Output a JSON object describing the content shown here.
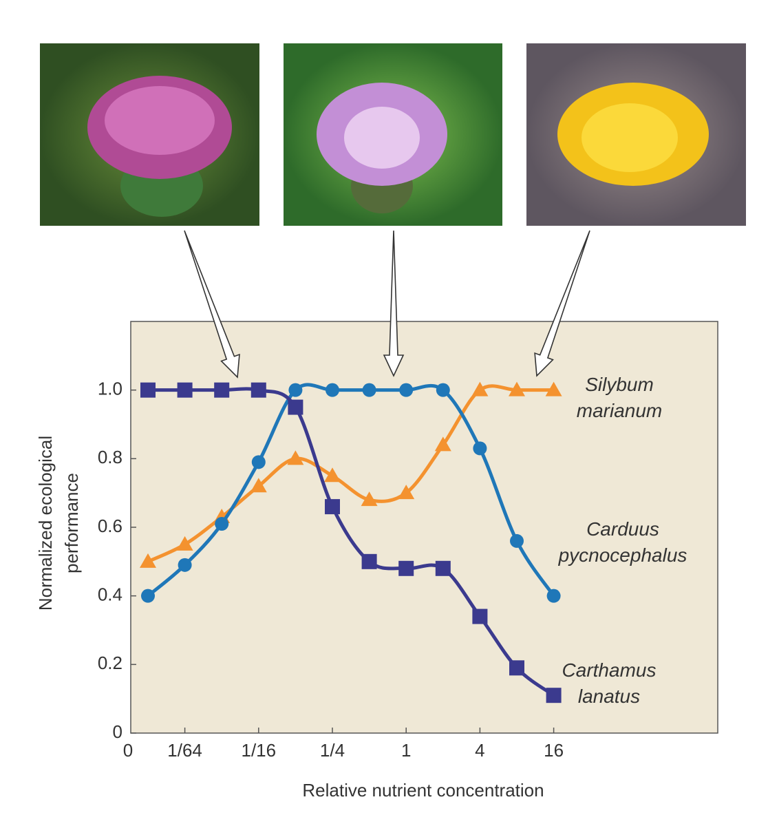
{
  "chart_data": {
    "type": "line",
    "x_label": "Relative nutrient concentration",
    "y_label": "Normalized ecological performance",
    "x_origin_label": "0",
    "categories": [
      null,
      "1/64",
      null,
      "1/16",
      null,
      "1/4",
      null,
      "1",
      null,
      "4",
      null,
      "16"
    ],
    "ylim": [
      0,
      1.2
    ],
    "yticks": [
      0,
      0.2,
      0.4,
      0.6,
      0.8,
      {
        "value": 1,
        "label": "1.0"
      }
    ],
    "series": [
      {
        "name": "Silybum marianum",
        "color": "#f4922f",
        "marker": "triangle",
        "values": [
          0.5,
          0.55,
          0.63,
          0.72,
          0.8,
          0.75,
          0.68,
          0.7,
          0.84,
          1.0,
          1.0,
          1.0
        ]
      },
      {
        "name": "Carduus pycnocephalus",
        "color": "#1f77b8",
        "marker": "circle",
        "values": [
          0.4,
          0.49,
          0.61,
          0.79,
          1.0,
          1.0,
          1.0,
          1.0,
          1.0,
          0.83,
          0.56,
          0.4
        ]
      },
      {
        "name": "Carthamus lanatus",
        "color": "#3b3a8e",
        "marker": "square",
        "values": [
          1.0,
          1.0,
          1.0,
          1.0,
          0.95,
          0.66,
          0.5,
          0.48,
          0.48,
          0.34,
          0.19,
          0.11
        ]
      }
    ]
  }
}
